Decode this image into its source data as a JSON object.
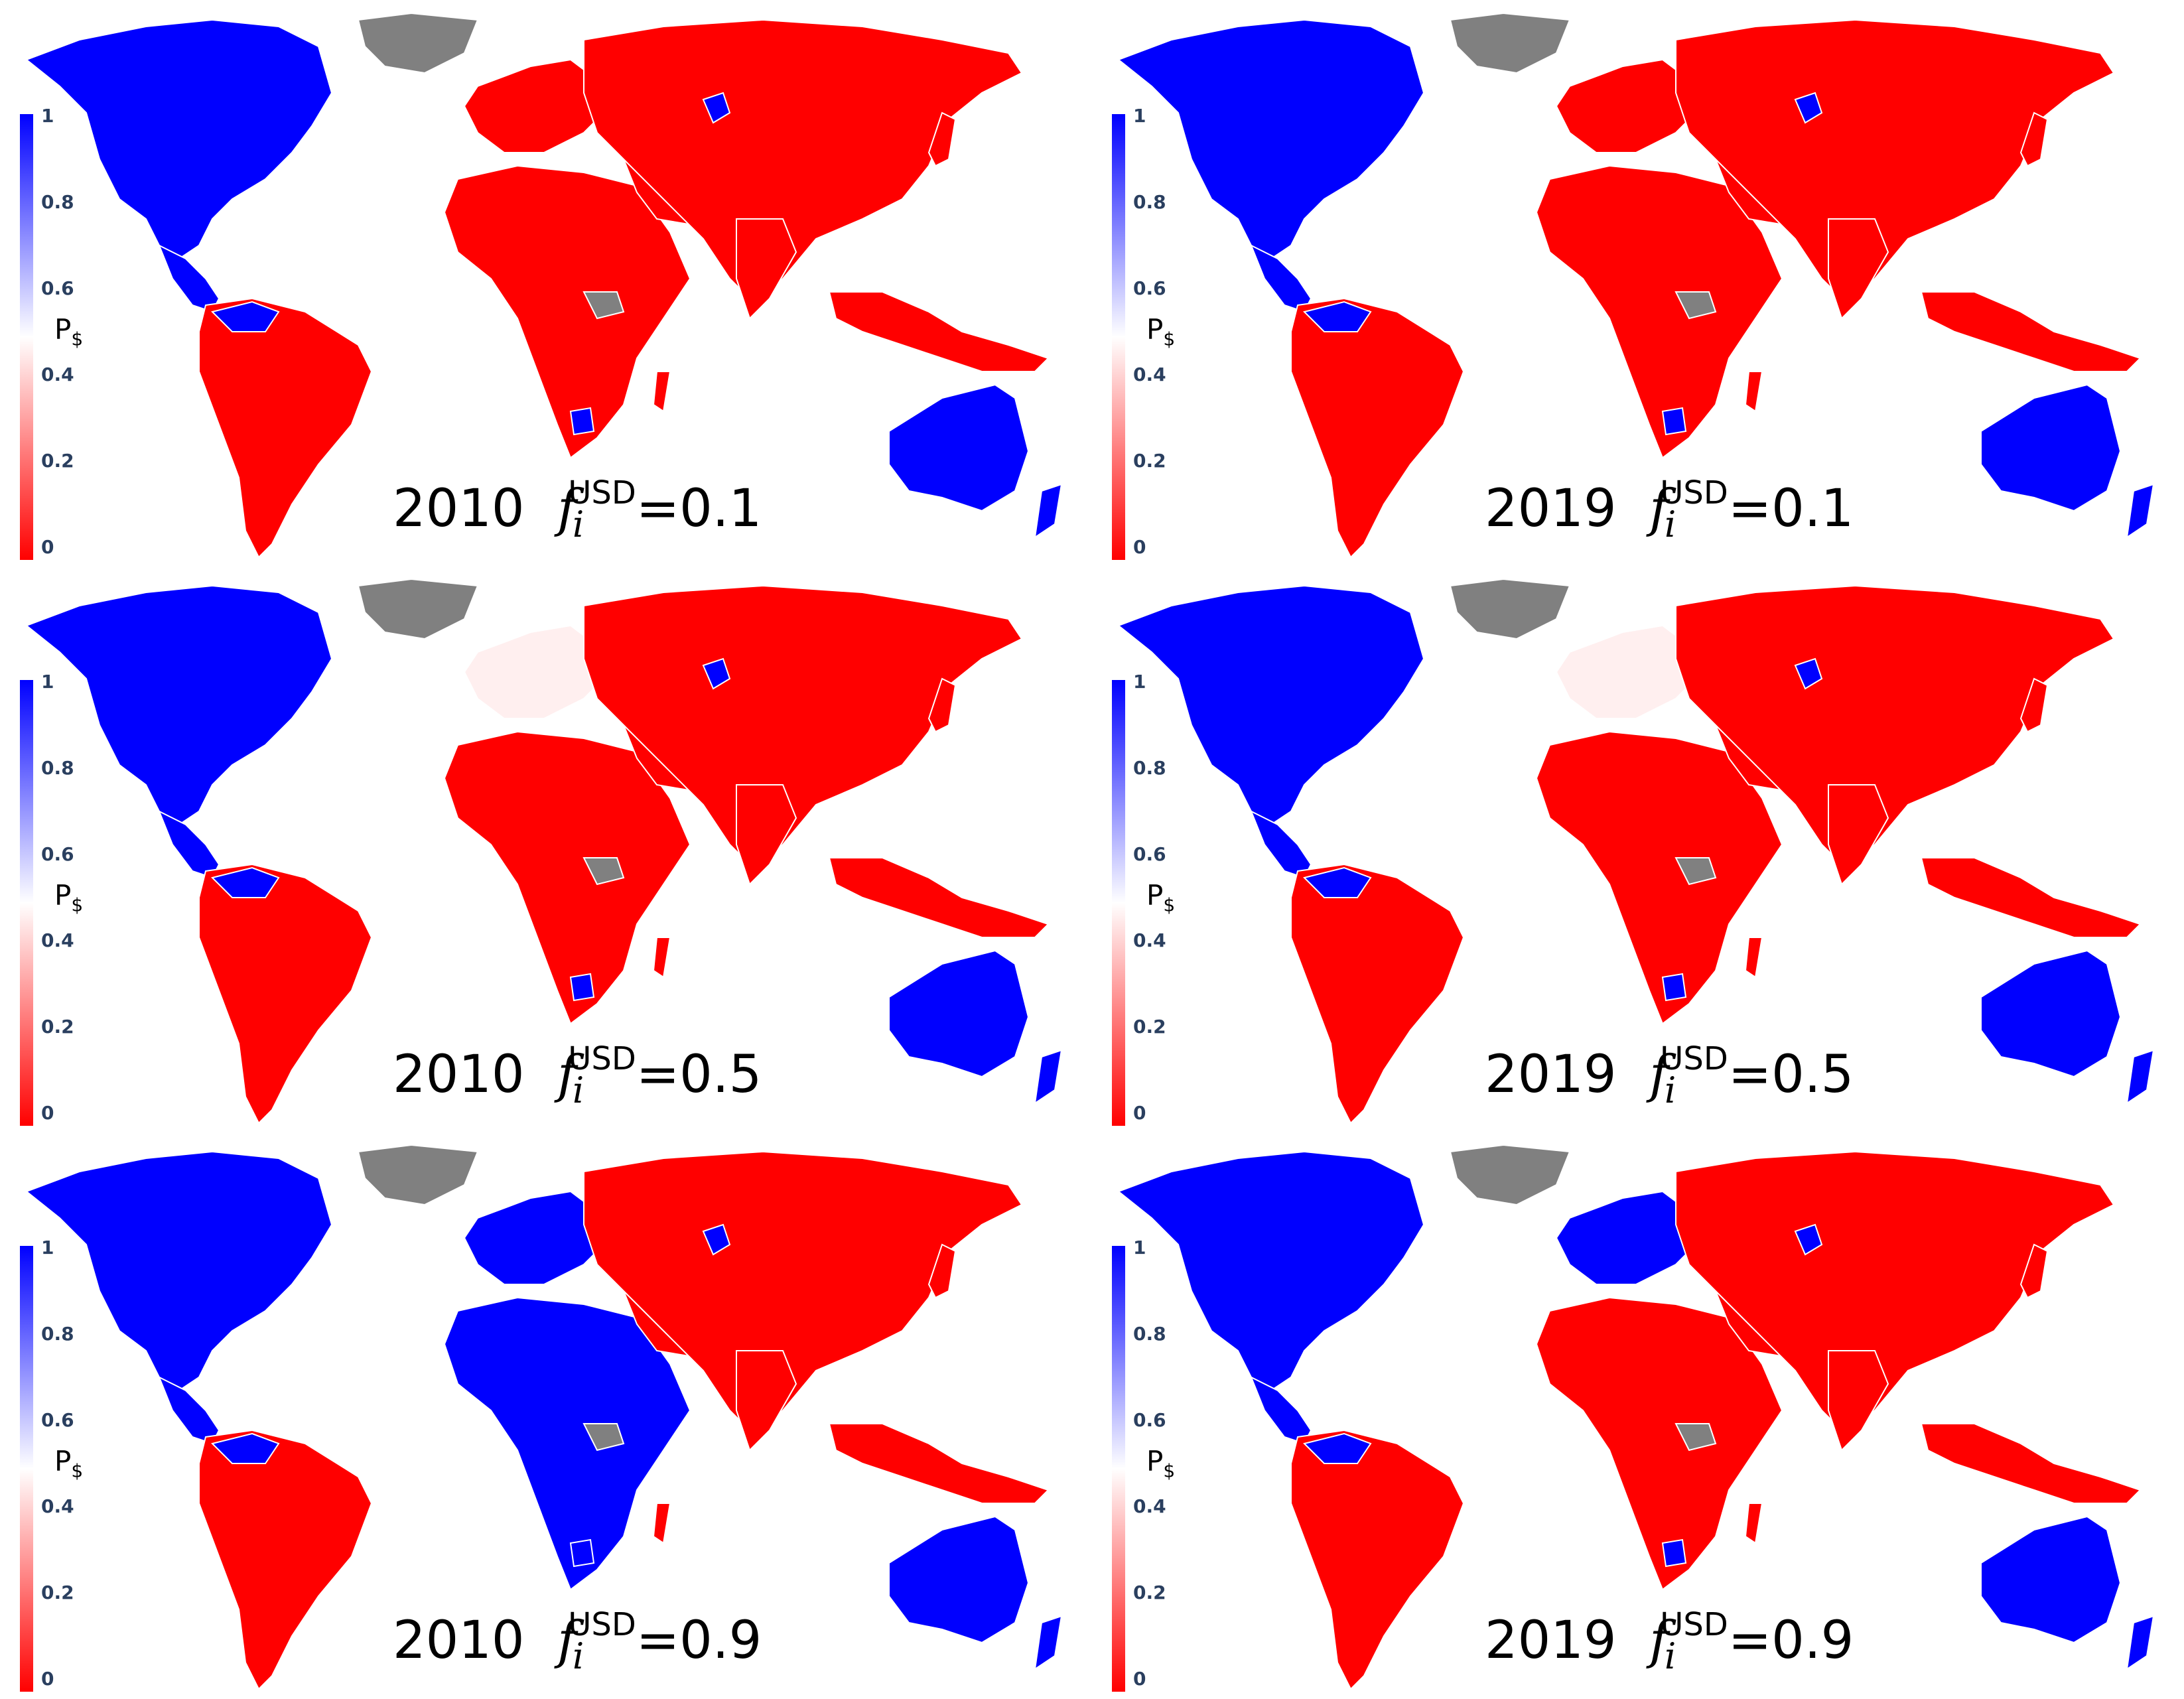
{
  "colorbar": {
    "title": "P",
    "title_subscript": "$",
    "ticks": [
      "1",
      "0.8",
      "0.6",
      "0.4",
      "0.2",
      "0"
    ],
    "scale": [
      "#0000ff",
      "#ffffff",
      "#ff0000"
    ],
    "range": [
      0,
      1
    ]
  },
  "colors": {
    "usd": "#0000ff",
    "eur": "#ffefef",
    "cny": "#ff0000",
    "no_data": "#808080",
    "border": "#ffffff"
  },
  "panels": [
    {
      "year": "2010",
      "f_symbol": "f",
      "f_sub": "i",
      "f_sup": "USD",
      "value_text": "=0.1",
      "year_key": "2010",
      "f": 0.1
    },
    {
      "year": "2019",
      "f_symbol": "f",
      "f_sub": "i",
      "f_sup": "USD",
      "value_text": "=0.1",
      "year_key": "2019",
      "f": 0.1
    },
    {
      "year": "2010",
      "f_symbol": "f",
      "f_sub": "i",
      "f_sup": "USD",
      "value_text": "=0.5",
      "year_key": "2010",
      "f": 0.5
    },
    {
      "year": "2019",
      "f_symbol": "f",
      "f_sub": "i",
      "f_sup": "USD",
      "value_text": "=0.5",
      "year_key": "2019",
      "f": 0.5
    },
    {
      "year": "2010",
      "f_symbol": "f",
      "f_sub": "i",
      "f_sup": "USD",
      "value_text": "=0.9",
      "year_key": "2010",
      "f": 0.9
    },
    {
      "year": "2019",
      "f_symbol": "f",
      "f_sub": "i",
      "f_sup": "USD",
      "value_text": "=0.9",
      "year_key": "2019",
      "f": 0.9
    }
  ]
}
